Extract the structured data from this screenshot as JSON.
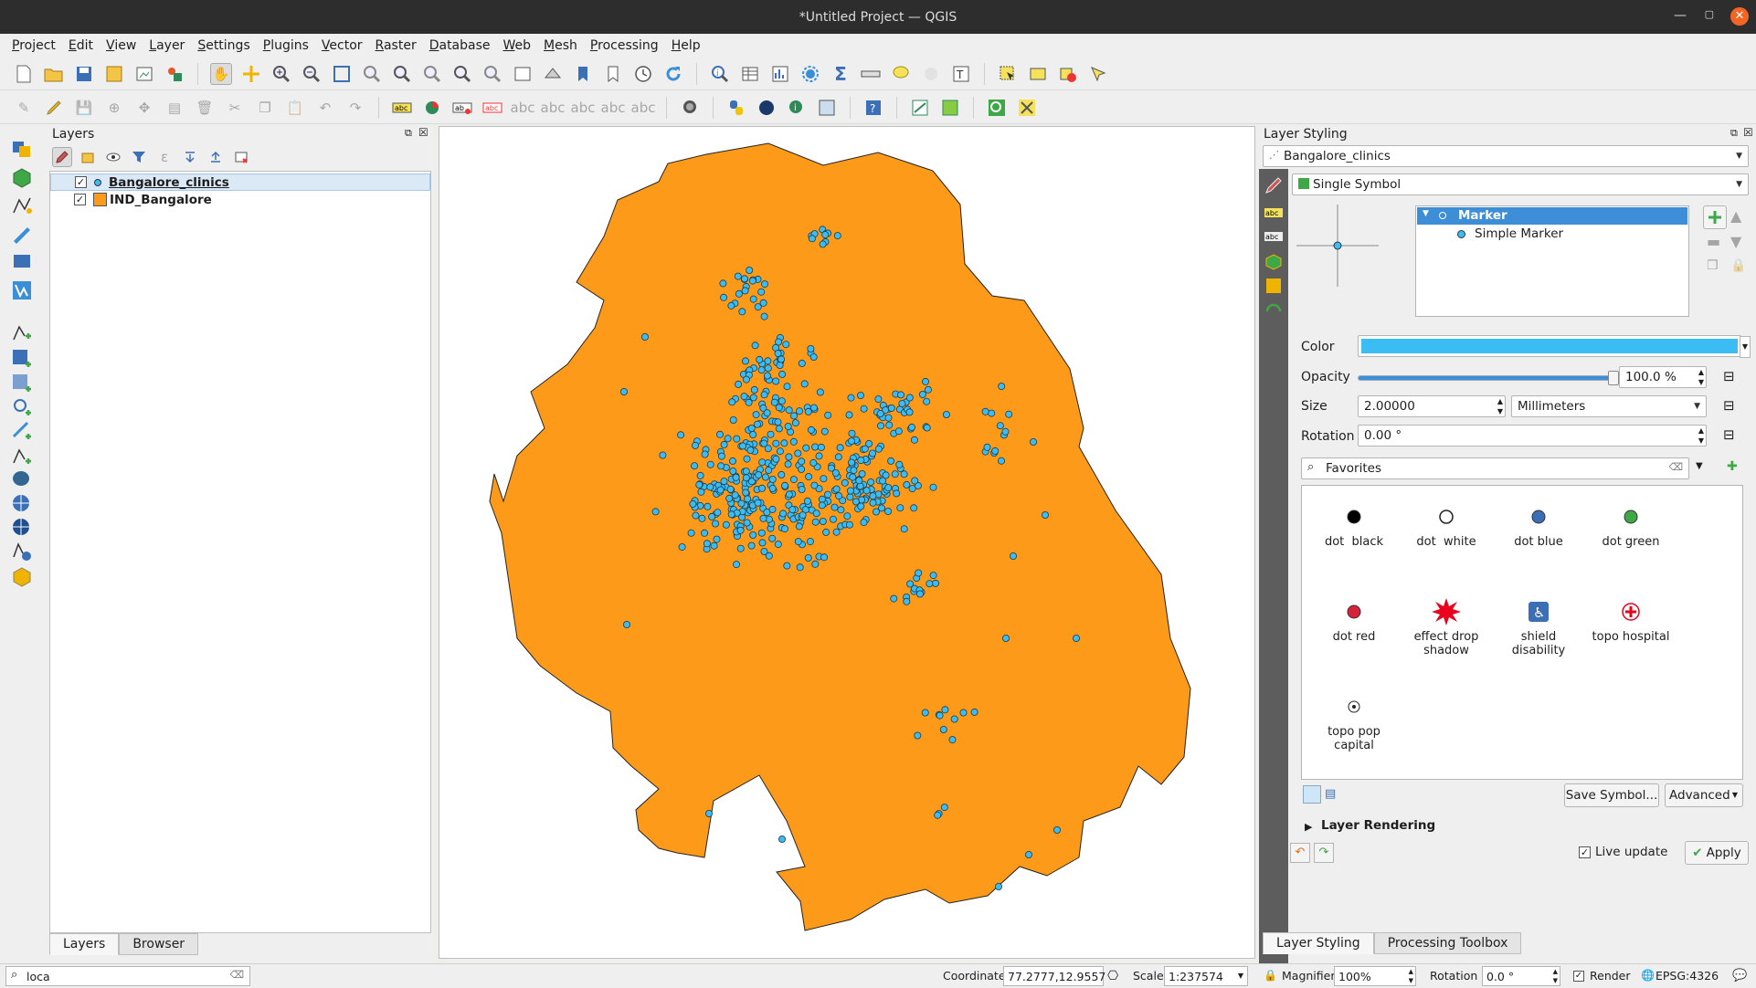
{
  "window": {
    "title": "*Untitled Project — QGIS",
    "min": "—",
    "max": "▢",
    "close": "✕"
  },
  "menu": [
    "Project",
    "Edit",
    "View",
    "Layer",
    "Settings",
    "Plugins",
    "Vector",
    "Raster",
    "Database",
    "Web",
    "Mesh",
    "Processing",
    "Help"
  ],
  "layers_panel": {
    "title": "Layers",
    "layers": [
      {
        "name": "Bangalore_clinics",
        "checked": "✓"
      },
      {
        "name": "IND_Bangalore",
        "checked": "✓"
      }
    ],
    "tabs": [
      "Layers",
      "Browser"
    ],
    "locator_value": "loca"
  },
  "styling": {
    "title": "Layer Styling",
    "layer_select": "Bangalore_clinics",
    "renderer": "Single Symbol",
    "tree": {
      "marker": "Marker",
      "simple_marker": "Simple Marker"
    },
    "color_label": "Color",
    "color_value": "#3bbcf2",
    "opacity_label": "Opacity",
    "opacity_value": "100.0 %",
    "opacity_fraction": 1.0,
    "size_label": "Size",
    "size_value": "2.00000",
    "size_unit": "Millimeters",
    "rotation_label": "Rotation",
    "rotation_value": "0.00 °",
    "search_value": "Favorites",
    "symbols": [
      {
        "label": "dot  black",
        "kind": "dot",
        "color": "#000000"
      },
      {
        "label": "dot  white",
        "kind": "ring",
        "color": "#ffffff"
      },
      {
        "label": "dot blue",
        "kind": "dot",
        "color": "#3a6fb5"
      },
      {
        "label": "dot green",
        "kind": "dot",
        "color": "#3ea846"
      },
      {
        "label": "dot red",
        "kind": "dot",
        "color": "#d8223a"
      },
      {
        "label": "effect drop shadow",
        "kind": "star",
        "color": "#e8001c"
      },
      {
        "label": "shield disability",
        "kind": "wheelchair",
        "color": "#3a6fb5"
      },
      {
        "label": "topo hospital",
        "kind": "hospital",
        "color": "#e8001c"
      },
      {
        "label": "topo pop capital",
        "kind": "capital",
        "color": "#222222"
      }
    ],
    "save_symbol": "Save Symbol...",
    "advanced": "Advanced",
    "layer_rendering": "Layer Rendering",
    "live_update": "Live update",
    "apply": "Apply",
    "tabs": [
      "Layer Styling",
      "Processing Toolbox"
    ]
  },
  "status": {
    "coordinate_label": "Coordinate",
    "coordinate_value": "77.2777,12.9557",
    "scale_label": "Scale",
    "scale_value": "1:237574",
    "magnifier_label": "Magnifier",
    "magnifier_value": "100%",
    "rotation_label": "Rotation",
    "rotation_value": "0.0 °",
    "render_label": "Render",
    "crs": "EPSG:4326"
  },
  "map": {
    "fill": "#fd9a1a",
    "stroke": "#232323",
    "point_color": "#3bbcf2"
  }
}
